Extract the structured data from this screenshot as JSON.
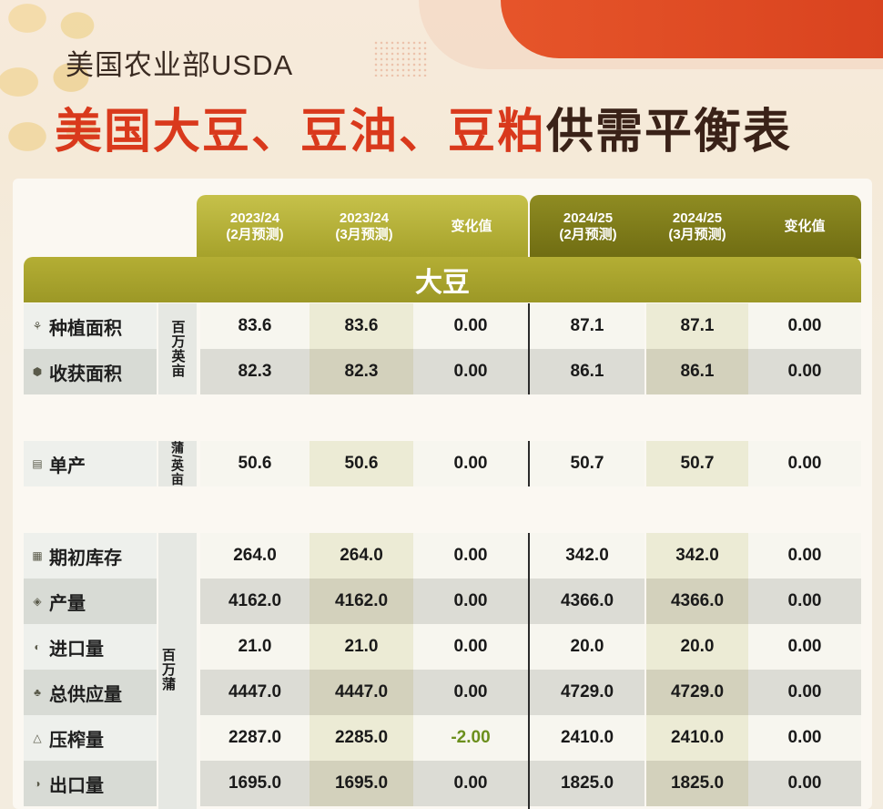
{
  "header": {
    "subtitle": "美国农业部USDA",
    "title_red": "美国大豆、豆油、豆粕",
    "title_dark": "供需平衡表"
  },
  "columns": [
    {
      "label": "2023/24\n(2月预测)"
    },
    {
      "label": "2023/24\n(3月预测)"
    },
    {
      "label": "变化值"
    },
    {
      "label": "2024/25\n(2月预测)"
    },
    {
      "label": "2024/25\n(3月预测)"
    },
    {
      "label": "变化值"
    }
  ],
  "section": "大豆",
  "units": {
    "area": "百万英亩",
    "yield": "蒲/英亩",
    "supply": "百万蒲"
  },
  "rows": [
    {
      "label": "种植面积",
      "icon": "planting-icon",
      "values": [
        "83.6",
        "83.6",
        "0.00",
        "87.1",
        "87.1",
        "0.00"
      ]
    },
    {
      "label": "收获面积",
      "icon": "harvest-icon",
      "values": [
        "82.3",
        "82.3",
        "0.00",
        "86.1",
        "86.1",
        "0.00"
      ]
    },
    {
      "label": "单产",
      "icon": "yield-icon",
      "values": [
        "50.6",
        "50.6",
        "0.00",
        "50.7",
        "50.7",
        "0.00"
      ]
    },
    {
      "label": "期初库存",
      "icon": "stock-icon",
      "values": [
        "264.0",
        "264.0",
        "0.00",
        "342.0",
        "342.0",
        "0.00"
      ]
    },
    {
      "label": "产量",
      "icon": "production-icon",
      "values": [
        "4162.0",
        "4162.0",
        "0.00",
        "4366.0",
        "4366.0",
        "0.00"
      ]
    },
    {
      "label": "进口量",
      "icon": "import-icon",
      "values": [
        "21.0",
        "21.0",
        "0.00",
        "20.0",
        "20.0",
        "0.00"
      ]
    },
    {
      "label": "总供应量",
      "icon": "supply-icon",
      "values": [
        "4447.0",
        "4447.0",
        "0.00",
        "4729.0",
        "4729.0",
        "0.00"
      ]
    },
    {
      "label": "压榨量",
      "icon": "crush-icon",
      "values": [
        "2287.0",
        "2285.0",
        "-2.00",
        "2410.0",
        "2410.0",
        "0.00"
      ]
    },
    {
      "label": "出口量",
      "icon": "export-icon",
      "values": [
        "1695.0",
        "1695.0",
        "0.00",
        "1825.0",
        "1825.0",
        "0.00"
      ]
    }
  ]
}
